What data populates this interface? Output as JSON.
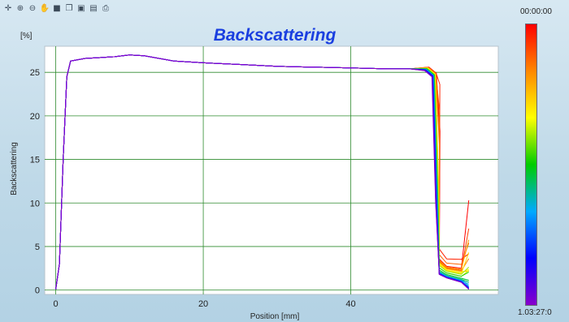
{
  "toolbar": {
    "icons": [
      "crosshair-icon",
      "zoom-in-icon",
      "zoom-out-icon",
      "pan-icon",
      "save-icon",
      "copy-icon",
      "export-icon",
      "print-preview-icon",
      "print-icon"
    ]
  },
  "colorbar": {
    "top_label": "00:00:00",
    "bottom_label": "1.03:27:0",
    "colors": [
      "#ff0000",
      "#ff8800",
      "#ffff00",
      "#00cc00",
      "#00aaff",
      "#0000ff",
      "#8800cc"
    ]
  },
  "chart_data": {
    "type": "line",
    "title": "Backscattering",
    "title_color": "#1a3fe0",
    "unit_label": "[%]",
    "ylabel": "Backscattering",
    "xlabel": "Position [mm]",
    "xlim": [
      -1.5,
      60
    ],
    "ylim": [
      -0.5,
      28
    ],
    "x_ticks": [
      0,
      20,
      40
    ],
    "y_ticks": [
      0,
      5,
      10,
      15,
      20,
      25
    ],
    "grid": true,
    "grid_color": "#2e8b2e",
    "series_note": "family of profiles from 00:00:00 (red) to 1.03:27:0 (violet)",
    "base_profile": {
      "x": [
        0,
        0.5,
        1.0,
        1.5,
        2.0,
        4,
        6,
        8,
        10,
        12,
        14,
        16,
        20,
        25,
        30,
        35,
        40,
        45,
        48,
        50,
        51.0,
        51.5,
        52,
        53,
        55,
        56
      ],
      "y": [
        0.1,
        3,
        15,
        24.5,
        26.3,
        26.6,
        26.7,
        26.8,
        27.0,
        26.9,
        26.6,
        26.3,
        26.1,
        25.9,
        25.7,
        25.6,
        25.5,
        25.4,
        25.4,
        25.2,
        24.5,
        10,
        1.8,
        1.4,
        0.9,
        0.1
      ]
    },
    "late_tail": {
      "x": [
        51.5,
        52,
        53,
        54,
        55,
        55.5,
        56
      ],
      "y_max": [
        25,
        5,
        3.8,
        3.6,
        3.8,
        6,
        10.3
      ]
    }
  }
}
